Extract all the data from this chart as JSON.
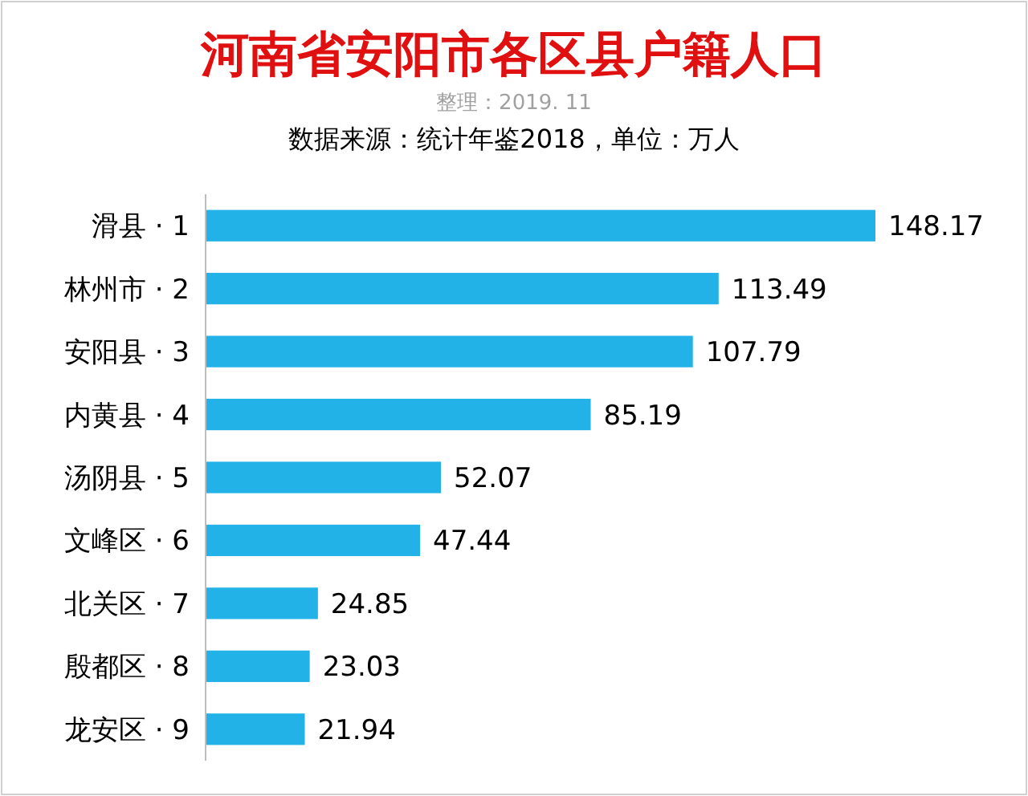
{
  "chart_data": {
    "type": "bar",
    "orientation": "horizontal",
    "title": "河南省安阳市各区县户籍人口",
    "subtitle": "整理：2019. 11",
    "annotations": [
      "数据来源：统计年鉴2018，单位：万人"
    ],
    "categories": [
      "滑县 · 1",
      "林州市 · 2",
      "安阳县 · 3",
      "内黄县 · 4",
      "汤阴县 · 5",
      "文峰区 · 6",
      "北关区 · 7",
      "殷都区 · 8",
      "龙安区 · 9"
    ],
    "values": [
      148.17,
      113.49,
      107.79,
      85.19,
      52.07,
      47.44,
      24.85,
      23.03,
      21.94
    ],
    "color": "#22b2e8",
    "data_labels": true
  }
}
